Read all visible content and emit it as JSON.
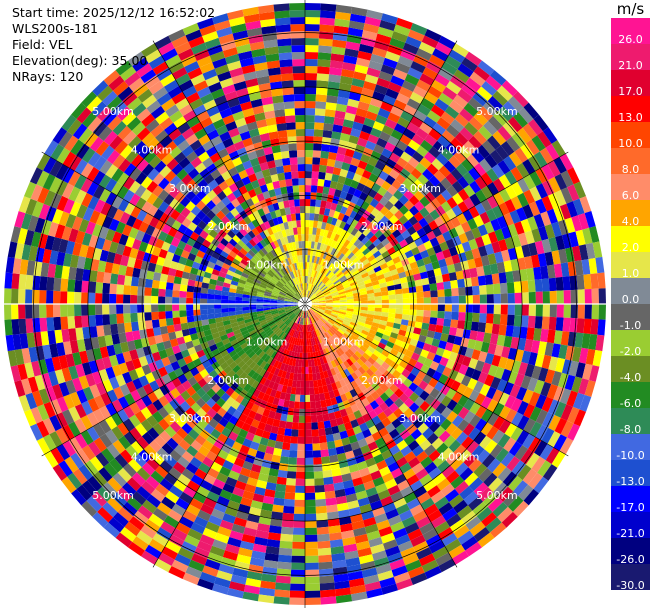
{
  "info": {
    "start_time": "Start time: 2025/12/12 16:52:02",
    "instrument": "WLS200s-181",
    "field": "Field: VEL",
    "elevation": "Elevation(deg): 35.00",
    "nrays": "NRays: 120"
  },
  "chart_data": {
    "type": "heatmap",
    "projection": "polar-ppi",
    "field": "VEL",
    "elevation_deg": 35.0,
    "nrays": 120,
    "range_unit": "km",
    "range_rings": [
      "1.00km",
      "2.00km",
      "3.00km",
      "4.00km",
      "5.00km"
    ],
    "range_ring_values": [
      1,
      2,
      3,
      4,
      5
    ],
    "max_range_km": 5.6,
    "colorbar": {
      "unit": "m/s",
      "labels": [
        "26.0",
        "21.0",
        "17.0",
        "13.0",
        "10.0",
        "8.0",
        "6.0",
        "4.0",
        "2.0",
        "1.0",
        "0.0",
        "-1.0",
        "-2.0",
        "-4.0",
        "-6.0",
        "-8.0",
        "-10.0",
        "-13.0",
        "-17.0",
        "-21.0",
        "-26.0",
        "-30.0"
      ],
      "colors": [
        "#ff1493",
        "#ee1b6e",
        "#e0002f",
        "#ff0000",
        "#ff4500",
        "#ff6a2a",
        "#ff8c69",
        "#ffa500",
        "#ffff00",
        "#e6e64a",
        "#808a96",
        "#666666",
        "#9acd32",
        "#6b8e23",
        "#228b22",
        "#2e8b57",
        "#4169e1",
        "#1e50d0",
        "#0000ff",
        "#0000cd",
        "#000080",
        "#191970"
      ]
    },
    "description_regions": [
      {
        "sector": "south",
        "dominant": "red/orange (positive 10-21 m/s)"
      },
      {
        "sector": "east-center",
        "dominant": "yellow (positive 1-4 m/s)"
      },
      {
        "sector": "west",
        "dominant": "blue (negative -10 to -17 m/s)"
      },
      {
        "sector": "southwest-center",
        "dominant": "green (negative -2 to -8 m/s)"
      },
      {
        "sector": "outer ring",
        "dominant": "noise (all values)"
      }
    ]
  }
}
